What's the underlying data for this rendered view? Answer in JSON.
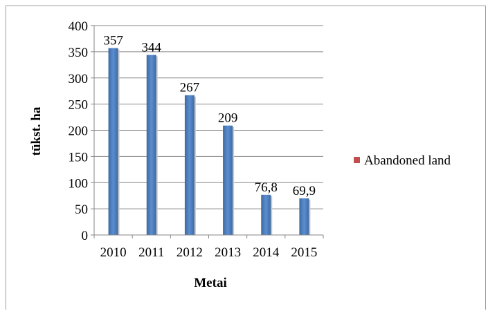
{
  "chart_data": {
    "type": "bar",
    "title": "",
    "xlabel": "Metai",
    "ylabel": "tūkst. ha",
    "categories": [
      "2010",
      "2011",
      "2012",
      "2013",
      "2014",
      "2015"
    ],
    "series": [
      {
        "name": "Abandoned land",
        "values": [
          357,
          344,
          267,
          209,
          76.8,
          69.9
        ],
        "labels": [
          "357",
          "344",
          "267",
          "209",
          "76,8",
          "69,9"
        ]
      }
    ],
    "ylim": [
      0,
      400
    ],
    "yticks": [
      0,
      50,
      100,
      150,
      200,
      250,
      300,
      350,
      400
    ],
    "grid": true,
    "legend_position": "right",
    "colors": {
      "bar": "#4f81bd",
      "legend_marker": "#c0504d",
      "grid": "#868686"
    }
  }
}
